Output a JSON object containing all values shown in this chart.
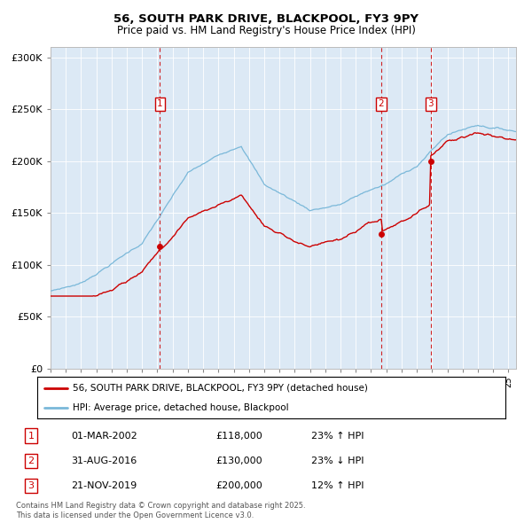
{
  "title": "56, SOUTH PARK DRIVE, BLACKPOOL, FY3 9PY",
  "subtitle": "Price paid vs. HM Land Registry's House Price Index (HPI)",
  "legend_line1": "56, SOUTH PARK DRIVE, BLACKPOOL, FY3 9PY (detached house)",
  "legend_line2": "HPI: Average price, detached house, Blackpool",
  "table_entries": [
    {
      "num": "1",
      "date": "01-MAR-2002",
      "price": "£118,000",
      "change": "23% ↑ HPI"
    },
    {
      "num": "2",
      "date": "31-AUG-2016",
      "price": "£130,000",
      "change": "23% ↓ HPI"
    },
    {
      "num": "3",
      "date": "21-NOV-2019",
      "price": "£200,000",
      "change": "12% ↑ HPI"
    }
  ],
  "footer": "Contains HM Land Registry data © Crown copyright and database right 2025.\nThis data is licensed under the Open Government Licence v3.0.",
  "hpi_color": "#7ab8d9",
  "price_color": "#cc0000",
  "bg_color": "#dce9f5",
  "ylim": [
    0,
    310000
  ],
  "yticks": [
    0,
    50000,
    100000,
    150000,
    200000,
    250000,
    300000
  ],
  "ytick_labels": [
    "£0",
    "£50K",
    "£100K",
    "£150K",
    "£200K",
    "£250K",
    "£300K"
  ],
  "sale_dates_num": [
    2002.17,
    2016.67,
    2019.9
  ],
  "sale_prices": [
    118000,
    130000,
    200000
  ],
  "xmin": 1995.0,
  "xmax": 2025.5
}
